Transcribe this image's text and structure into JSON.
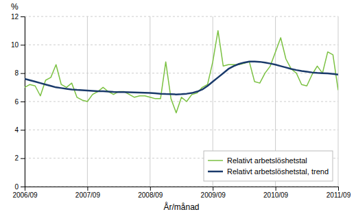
{
  "chart_data": {
    "type": "line",
    "xlabel": "År/månad",
    "ylabel": "%",
    "categories": [
      "2006/09",
      null,
      null,
      null,
      null,
      null,
      null,
      null,
      null,
      null,
      null,
      null,
      "2007/09",
      null,
      null,
      null,
      null,
      null,
      null,
      null,
      null,
      null,
      null,
      null,
      "2008/09",
      null,
      null,
      null,
      null,
      null,
      null,
      null,
      null,
      null,
      null,
      null,
      "2009/09",
      null,
      null,
      null,
      null,
      null,
      null,
      null,
      null,
      null,
      null,
      null,
      "2010/09",
      null,
      null,
      null,
      null,
      null,
      null,
      null,
      null,
      null,
      null,
      null,
      "2011/09"
    ],
    "series": [
      {
        "name": "Relativt arbetslöshetstal",
        "color": "#7bc142",
        "values": [
          7.0,
          7.2,
          7.1,
          6.4,
          7.5,
          7.7,
          8.6,
          7.2,
          7.0,
          7.3,
          6.3,
          6.1,
          6.0,
          6.5,
          6.7,
          7.0,
          6.7,
          6.5,
          6.7,
          6.7,
          6.5,
          6.3,
          6.4,
          6.4,
          6.3,
          6.2,
          6.2,
          8.8,
          6.2,
          5.2,
          6.3,
          6.0,
          6.5,
          6.6,
          7.0,
          7.2,
          8.8,
          11.0,
          8.5,
          8.6,
          8.6,
          8.6,
          8.7,
          8.8,
          7.4,
          7.3,
          8.0,
          8.5,
          9.5,
          10.5,
          9.0,
          8.3,
          8.0,
          7.2,
          7.1,
          7.9,
          8.5,
          8.0,
          9.5,
          9.3,
          6.8
        ]
      },
      {
        "name": "Relativt arbetslöshetstal, trend",
        "color": "#1a3a6b",
        "values": [
          7.6,
          7.5,
          7.4,
          7.3,
          7.2,
          7.1,
          7.0,
          6.95,
          6.9,
          6.85,
          6.82,
          6.8,
          6.78,
          6.75,
          6.72,
          6.72,
          6.7,
          6.68,
          6.67,
          6.66,
          6.65,
          6.64,
          6.63,
          6.62,
          6.6,
          6.58,
          6.55,
          6.53,
          6.52,
          6.5,
          6.52,
          6.55,
          6.6,
          6.7,
          6.85,
          7.1,
          7.4,
          7.7,
          8.0,
          8.3,
          8.5,
          8.65,
          8.75,
          8.82,
          8.82,
          8.8,
          8.75,
          8.68,
          8.6,
          8.5,
          8.4,
          8.3,
          8.22,
          8.15,
          8.1,
          8.05,
          8.02,
          8.0,
          7.98,
          7.95,
          7.9
        ]
      }
    ],
    "ylim": [
      0,
      12
    ],
    "yticks": [
      0,
      2,
      4,
      6,
      8,
      10,
      12
    ],
    "grid": true,
    "legend": "lower right"
  }
}
